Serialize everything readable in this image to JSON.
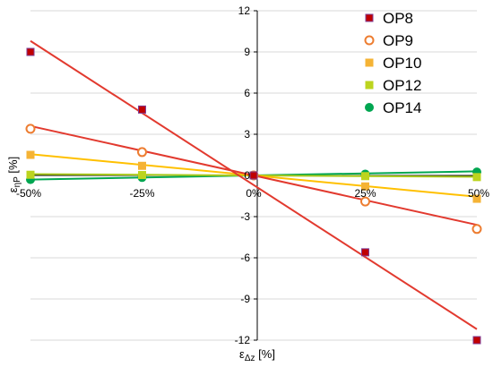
{
  "chart_data": {
    "type": "scatter",
    "title": "",
    "xlabel": {
      "main": "ε",
      "sub": "Δz",
      "unit": " [%]"
    },
    "ylabel": {
      "main": "ε",
      "sub": "ηP",
      "unit": " [%]"
    },
    "xlim": [
      -50,
      50
    ],
    "ylim": [
      -12,
      12
    ],
    "x_ticks": [
      {
        "value": -50,
        "label": "-50%"
      },
      {
        "value": -25,
        "label": "-25%"
      },
      {
        "value": 0,
        "label": "0%"
      },
      {
        "value": 25,
        "label": "25%"
      },
      {
        "value": 50,
        "label": "50%"
      }
    ],
    "y_ticks": [
      {
        "value": 12,
        "label": "12"
      },
      {
        "value": 9,
        "label": "9"
      },
      {
        "value": 6,
        "label": "6"
      },
      {
        "value": 3,
        "label": "3"
      },
      {
        "value": 0,
        "label": "0"
      },
      {
        "value": -3,
        "label": "-3"
      },
      {
        "value": -6,
        "label": "-6"
      },
      {
        "value": -9,
        "label": "-9"
      },
      {
        "value": -12,
        "label": "-12"
      }
    ],
    "grid": "horizontal",
    "legend": "top-right",
    "series": [
      {
        "name": "OP8",
        "marker": "square",
        "marker_color": "#c00000",
        "marker_edge": "#7f3f98",
        "line_color": "#e23a2f",
        "points": [
          [
            -50,
            9.0
          ],
          [
            -25,
            4.8
          ],
          [
            0,
            0.0
          ],
          [
            25,
            -5.6
          ],
          [
            50,
            -12.0
          ]
        ],
        "trend": [
          [
            -50,
            9.8
          ],
          [
            50,
            -11.2
          ]
        ]
      },
      {
        "name": "OP9",
        "marker": "circle-open",
        "marker_color": "#ed7d31",
        "line_color": "#e23a2f",
        "points": [
          [
            -50,
            3.4
          ],
          [
            -25,
            1.7
          ],
          [
            0,
            0.0
          ],
          [
            25,
            -1.9
          ],
          [
            50,
            -3.9
          ]
        ],
        "trend": [
          [
            -50,
            3.6
          ],
          [
            50,
            -3.6
          ]
        ]
      },
      {
        "name": "OP10",
        "marker": "square",
        "marker_color": "#f5b335",
        "line_color": "#ffc000",
        "points": [
          [
            -50,
            1.5
          ],
          [
            -25,
            0.7
          ],
          [
            0,
            0.0
          ],
          [
            25,
            -0.8
          ],
          [
            50,
            -1.7
          ]
        ],
        "trend": [
          [
            -50,
            1.55
          ],
          [
            50,
            -1.55
          ]
        ]
      },
      {
        "name": "OP12",
        "marker": "square",
        "marker_color": "#bcd41e",
        "line_color": "#a9c91b",
        "points": [
          [
            -50,
            0.05
          ],
          [
            -25,
            0.03
          ],
          [
            0,
            0.0
          ],
          [
            25,
            -0.05
          ],
          [
            50,
            -0.12
          ]
        ],
        "trend": [
          [
            -50,
            0.1
          ],
          [
            50,
            -0.1
          ]
        ]
      },
      {
        "name": "OP14",
        "marker": "circle",
        "marker_color": "#00a651",
        "line_color": "#00a651",
        "points": [
          [
            -50,
            -0.3
          ],
          [
            -25,
            -0.15
          ],
          [
            0,
            0.0
          ],
          [
            25,
            0.1
          ],
          [
            50,
            0.25
          ]
        ],
        "trend": [
          [
            -50,
            -0.3
          ],
          [
            50,
            0.3
          ]
        ]
      }
    ]
  }
}
